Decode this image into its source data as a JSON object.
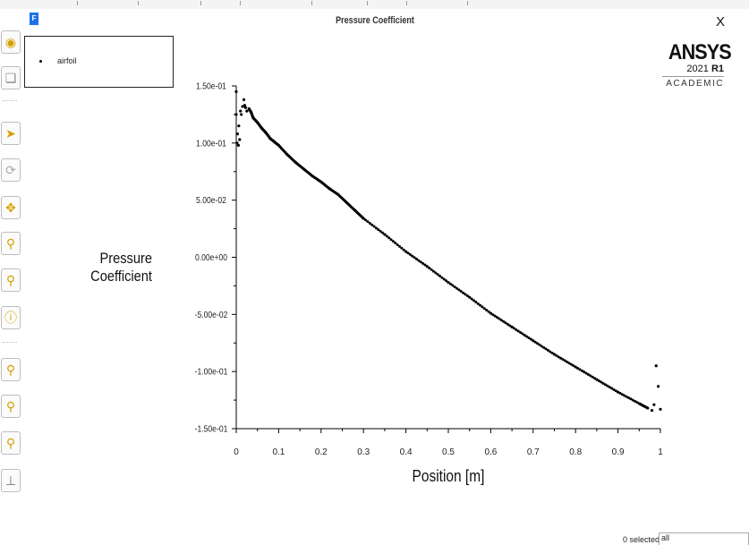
{
  "window": {
    "icon_letter": "F",
    "title": "Pressure Coefficient",
    "close_symbol": "X"
  },
  "legend": {
    "entries": [
      "airfoil"
    ]
  },
  "branding": {
    "name": "ANSYS",
    "version_prefix": "2021 ",
    "version_release": "R1",
    "edition": "ACADEMIC"
  },
  "chart_data": {
    "type": "scatter",
    "title": "Pressure Coefficient",
    "xlabel": "Position [m]",
    "ylabel_lines": [
      "Pressure",
      "Coefficient"
    ],
    "xlim": [
      0,
      1
    ],
    "ylim": [
      -0.15,
      0.15
    ],
    "xticks": [
      "0",
      "0.1",
      "0.2",
      "0.3",
      "0.4",
      "0.5",
      "0.6",
      "0.7",
      "0.8",
      "0.9",
      "1"
    ],
    "yticks": [
      "1.50e-01",
      "1.00e-01",
      "5.00e-02",
      "0.00e+00",
      "-5.00e-02",
      "-1.00e-01",
      "-1.50e-01"
    ],
    "grid": false,
    "legend_position": "top-left",
    "series": [
      {
        "name": "airfoil",
        "color": "#000000",
        "x": [
          0.0,
          0.0,
          0.002,
          0.003,
          0.005,
          0.006,
          0.008,
          0.01,
          0.012,
          0.015,
          0.018,
          0.02,
          0.022,
          0.025,
          0.03,
          0.035,
          0.04,
          0.05,
          0.06,
          0.07,
          0.08,
          0.09,
          0.1,
          0.12,
          0.14,
          0.16,
          0.18,
          0.2,
          0.22,
          0.24,
          0.26,
          0.28,
          0.3,
          0.35,
          0.4,
          0.45,
          0.5,
          0.55,
          0.6,
          0.65,
          0.7,
          0.75,
          0.8,
          0.85,
          0.9,
          0.95,
          0.97,
          0.98,
          0.985,
          0.99,
          0.995,
          1.0
        ],
        "y": [
          0.145,
          0.125,
          0.1,
          0.108,
          0.098,
          0.115,
          0.103,
          0.128,
          0.125,
          0.132,
          0.138,
          0.133,
          0.131,
          0.128,
          0.13,
          0.127,
          0.122,
          0.118,
          0.113,
          0.109,
          0.104,
          0.101,
          0.098,
          0.09,
          0.083,
          0.077,
          0.071,
          0.066,
          0.06,
          0.055,
          0.048,
          0.041,
          0.034,
          0.02,
          0.005,
          -0.008,
          -0.022,
          -0.035,
          -0.049,
          -0.061,
          -0.073,
          -0.085,
          -0.096,
          -0.107,
          -0.118,
          -0.128,
          -0.132,
          -0.134,
          -0.129,
          -0.095,
          -0.113,
          -0.133
        ]
      }
    ]
  },
  "status": {
    "selected_text": "0 selected",
    "filter_value": "all"
  }
}
